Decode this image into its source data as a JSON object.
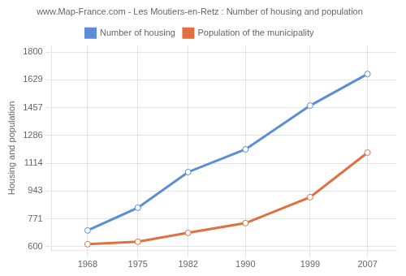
{
  "chart_data": {
    "type": "line",
    "title": "www.Map-France.com - Les Moutiers-en-Retz : Number of housing and population",
    "ylabel": "Housing and population",
    "x": [
      1968,
      1975,
      1982,
      1990,
      1999,
      2007
    ],
    "series": [
      {
        "name": "Number of housing",
        "color": "#5b8dd9",
        "marker": "o",
        "line_style": "solid",
        "values": [
          700,
          840,
          1060,
          1200,
          1470,
          1665
        ]
      },
      {
        "name": "Population of the municipality",
        "color": "#e07040",
        "marker": "o",
        "line_style": "solid",
        "values": [
          615,
          630,
          685,
          745,
          905,
          1180
        ]
      }
    ],
    "xlim": [
      1963,
      2011
    ],
    "xticks": [
      1968,
      1975,
      1982,
      1990,
      1999,
      2007
    ],
    "ylim": [
      575,
      1840
    ],
    "yticks": [
      600,
      771,
      943,
      1114,
      1286,
      1457,
      1629,
      1800
    ],
    "grid": true,
    "legend": "top"
  }
}
